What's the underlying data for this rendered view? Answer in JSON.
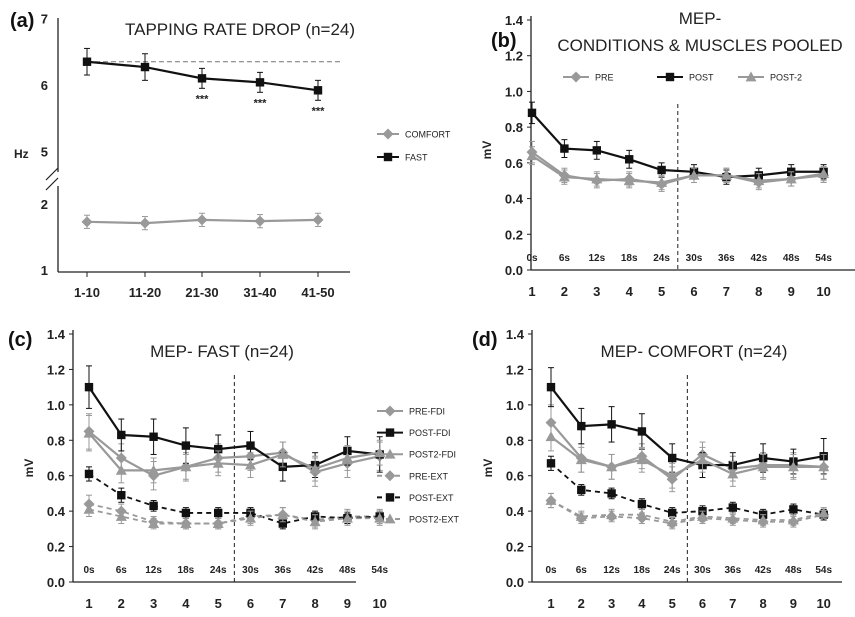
{
  "colors": {
    "gray": "#999999",
    "black": "#111111"
  },
  "chart_data": [
    {
      "id": "a",
      "panel_label": "(a)",
      "type": "line",
      "title": "TAPPING RATE DROP (n=24)",
      "ylabel": "Hz",
      "categories": [
        "1-10",
        "11-20",
        "21-30",
        "31-40",
        "41-50"
      ],
      "yticks_upper": [
        "7",
        "6",
        "5"
      ],
      "yticks_lower": [
        "2",
        "1"
      ],
      "axis_break": true,
      "reference_line": 6.35,
      "annotations": [
        "***",
        "***",
        "***"
      ],
      "annotation_points": [
        3,
        4,
        5
      ],
      "series": [
        {
          "name": "COMFORT",
          "color": "#999999",
          "marker": "diamond",
          "dash": false,
          "values": [
            1.73,
            1.71,
            1.76,
            1.74,
            1.76
          ],
          "errors": [
            0.1,
            0.1,
            0.1,
            0.1,
            0.1
          ]
        },
        {
          "name": "FAST",
          "color": "#111111",
          "marker": "square",
          "dash": false,
          "values": [
            6.35,
            6.27,
            6.1,
            6.04,
            5.92
          ],
          "errors": [
            0.2,
            0.2,
            0.15,
            0.15,
            0.15
          ]
        }
      ]
    },
    {
      "id": "b",
      "panel_label": "(b)",
      "type": "line",
      "title": [
        "MEP-",
        "CONDITIONS & MUSCLES POOLED"
      ],
      "ylabel": "mV",
      "x": [
        "1",
        "2",
        "3",
        "4",
        "5",
        "6",
        "7",
        "8",
        "9",
        "10"
      ],
      "time_labels": [
        "0s",
        "6s",
        "12s",
        "18s",
        "24s",
        "30s",
        "36s",
        "42s",
        "48s",
        "54s"
      ],
      "yticks": [
        "0.0",
        "0.2",
        "0.4",
        "0.6",
        "0.8",
        "1.0",
        "1.2",
        "1.4"
      ],
      "ylim": [
        0,
        1.4
      ],
      "divider_between": [
        5,
        6
      ],
      "series": [
        {
          "name": "PRE",
          "color": "#999999",
          "marker": "diamond",
          "dash": false,
          "values": [
            0.66,
            0.53,
            0.5,
            0.51,
            0.48,
            0.53,
            0.53,
            0.49,
            0.51,
            0.53
          ],
          "errors": [
            0.06,
            0.04,
            0.04,
            0.04,
            0.04,
            0.04,
            0.04,
            0.04,
            0.04,
            0.04
          ]
        },
        {
          "name": "POST",
          "color": "#111111",
          "marker": "square",
          "dash": false,
          "values": [
            0.88,
            0.68,
            0.67,
            0.62,
            0.56,
            0.55,
            0.52,
            0.53,
            0.55,
            0.55
          ],
          "errors": [
            0.06,
            0.05,
            0.05,
            0.05,
            0.04,
            0.04,
            0.04,
            0.04,
            0.04,
            0.04
          ]
        },
        {
          "name": "POST-2",
          "color": "#999999",
          "marker": "triangle",
          "dash": false,
          "values": [
            0.64,
            0.52,
            0.51,
            0.5,
            0.49,
            0.53,
            0.53,
            0.5,
            0.51,
            0.54
          ],
          "errors": [
            0.05,
            0.04,
            0.04,
            0.04,
            0.04,
            0.04,
            0.04,
            0.04,
            0.04,
            0.04
          ]
        }
      ]
    },
    {
      "id": "c",
      "panel_label": "(c)",
      "type": "line",
      "title": "MEP- FAST (n=24)",
      "ylabel": "mV",
      "x": [
        "1",
        "2",
        "3",
        "4",
        "5",
        "6",
        "7",
        "8",
        "9",
        "10"
      ],
      "time_labels": [
        "0s",
        "6s",
        "12s",
        "18s",
        "24s",
        "30s",
        "36s",
        "42s",
        "48s",
        "54s"
      ],
      "yticks": [
        "0.0",
        "0.2",
        "0.4",
        "0.6",
        "0.8",
        "1.0",
        "1.2",
        "1.4"
      ],
      "ylim": [
        0,
        1.4
      ],
      "divider_between": [
        5,
        6
      ],
      "series": [
        {
          "name": "PRE-FDI",
          "color": "#999999",
          "marker": "diamond",
          "dash": false,
          "values": [
            0.85,
            0.7,
            0.6,
            0.65,
            0.7,
            0.71,
            0.73,
            0.62,
            0.67,
            0.71
          ],
          "errors": [
            0.1,
            0.08,
            0.08,
            0.08,
            0.08,
            0.08,
            0.06,
            0.08,
            0.08,
            0.08
          ]
        },
        {
          "name": "POST-FDI",
          "color": "#111111",
          "marker": "square",
          "dash": false,
          "values": [
            1.1,
            0.83,
            0.82,
            0.77,
            0.75,
            0.77,
            0.65,
            0.66,
            0.74,
            0.72
          ],
          "errors": [
            0.12,
            0.09,
            0.1,
            0.1,
            0.08,
            0.08,
            0.08,
            0.07,
            0.08,
            0.1
          ]
        },
        {
          "name": "POST2-FDI",
          "color": "#999999",
          "marker": "triangle",
          "dash": false,
          "values": [
            0.84,
            0.63,
            0.63,
            0.65,
            0.67,
            0.66,
            0.72,
            0.64,
            0.7,
            0.73
          ],
          "errors": [
            0.1,
            0.07,
            0.07,
            0.07,
            0.07,
            0.07,
            0.07,
            0.07,
            0.07,
            0.07
          ]
        },
        {
          "name": "PRE-EXT",
          "color": "#999999",
          "marker": "diamond",
          "dash": true,
          "values": [
            0.44,
            0.4,
            0.34,
            0.33,
            0.33,
            0.37,
            0.38,
            0.35,
            0.37,
            0.37
          ],
          "errors": [
            0.05,
            0.04,
            0.03,
            0.03,
            0.03,
            0.04,
            0.04,
            0.04,
            0.04,
            0.04
          ]
        },
        {
          "name": "POST-EXT",
          "color": "#111111",
          "marker": "square",
          "dash": true,
          "values": [
            0.61,
            0.49,
            0.43,
            0.39,
            0.39,
            0.39,
            0.33,
            0.37,
            0.36,
            0.37
          ],
          "errors": [
            0.04,
            0.04,
            0.03,
            0.03,
            0.03,
            0.03,
            0.03,
            0.03,
            0.03,
            0.03
          ]
        },
        {
          "name": "POST2-EXT",
          "color": "#999999",
          "marker": "triangle",
          "dash": true,
          "values": [
            0.41,
            0.37,
            0.33,
            0.33,
            0.33,
            0.36,
            0.38,
            0.34,
            0.36,
            0.36
          ],
          "errors": [
            0.04,
            0.04,
            0.03,
            0.03,
            0.03,
            0.04,
            0.04,
            0.04,
            0.04,
            0.04
          ]
        }
      ]
    },
    {
      "id": "d",
      "panel_label": "(d)",
      "type": "line",
      "title": "MEP- COMFORT (n=24)",
      "ylabel": "mV",
      "x": [
        "1",
        "2",
        "3",
        "4",
        "5",
        "6",
        "7",
        "8",
        "9",
        "10"
      ],
      "time_labels": [
        "0s",
        "6s",
        "12s",
        "18s",
        "24s",
        "30s",
        "36s",
        "42s",
        "48s",
        "54s"
      ],
      "yticks": [
        "0.0",
        "0.2",
        "0.4",
        "0.6",
        "0.8",
        "1.0",
        "1.2",
        "1.4"
      ],
      "ylim": [
        0,
        1.4
      ],
      "divider_between": [
        5,
        6
      ],
      "series": [
        {
          "name": "PRE-FDI",
          "color": "#999999",
          "marker": "diamond",
          "dash": false,
          "values": [
            0.9,
            0.7,
            0.65,
            0.71,
            0.58,
            0.72,
            0.64,
            0.66,
            0.66,
            0.65
          ],
          "errors": [
            0.1,
            0.08,
            0.07,
            0.07,
            0.07,
            0.07,
            0.07,
            0.07,
            0.07,
            0.07
          ]
        },
        {
          "name": "POST-FDI",
          "color": "#111111",
          "marker": "square",
          "dash": false,
          "values": [
            1.1,
            0.88,
            0.89,
            0.85,
            0.7,
            0.66,
            0.66,
            0.7,
            0.68,
            0.71
          ],
          "errors": [
            0.11,
            0.1,
            0.1,
            0.1,
            0.08,
            0.07,
            0.07,
            0.08,
            0.07,
            0.1
          ]
        },
        {
          "name": "POST2-FDI",
          "color": "#999999",
          "marker": "triangle",
          "dash": false,
          "values": [
            0.82,
            0.69,
            0.65,
            0.69,
            0.6,
            0.69,
            0.61,
            0.65,
            0.65,
            0.65
          ],
          "errors": [
            0.08,
            0.07,
            0.07,
            0.07,
            0.07,
            0.07,
            0.07,
            0.07,
            0.07,
            0.07
          ]
        },
        {
          "name": "PRE-EXT",
          "color": "#999999",
          "marker": "diamond",
          "dash": true,
          "values": [
            0.46,
            0.36,
            0.37,
            0.36,
            0.33,
            0.36,
            0.35,
            0.34,
            0.34,
            0.38
          ],
          "errors": [
            0.04,
            0.03,
            0.03,
            0.03,
            0.03,
            0.03,
            0.03,
            0.03,
            0.03,
            0.03
          ]
        },
        {
          "name": "POST-EXT",
          "color": "#111111",
          "marker": "square",
          "dash": true,
          "values": [
            0.67,
            0.52,
            0.5,
            0.44,
            0.39,
            0.4,
            0.42,
            0.38,
            0.41,
            0.38
          ],
          "errors": [
            0.04,
            0.03,
            0.03,
            0.03,
            0.03,
            0.03,
            0.03,
            0.03,
            0.03,
            0.03
          ]
        },
        {
          "name": "POST2-EXT",
          "color": "#999999",
          "marker": "triangle",
          "dash": true,
          "values": [
            0.46,
            0.37,
            0.38,
            0.38,
            0.34,
            0.37,
            0.36,
            0.35,
            0.35,
            0.39
          ],
          "errors": [
            0.04,
            0.03,
            0.03,
            0.03,
            0.03,
            0.03,
            0.03,
            0.03,
            0.03,
            0.03
          ]
        }
      ]
    }
  ]
}
